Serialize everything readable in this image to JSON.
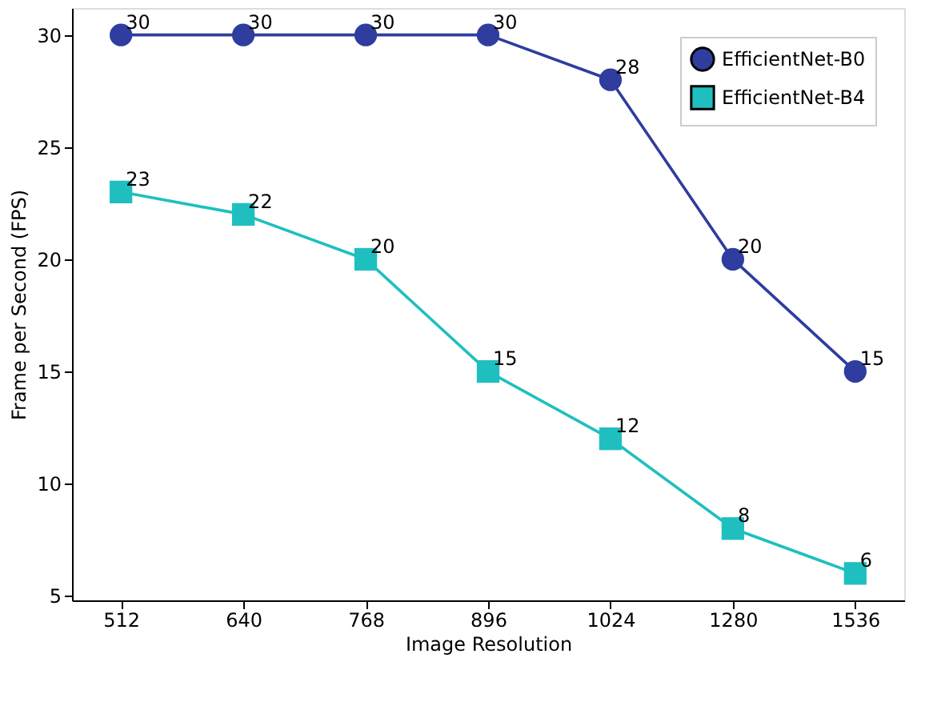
{
  "chart_data": {
    "type": "line",
    "xlabel": "Image Resolution",
    "ylabel": "Frame per Second (FPS)",
    "categories": [
      "512",
      "640",
      "768",
      "896",
      "1024",
      "1280",
      "1536"
    ],
    "series": [
      {
        "name": "EfficientNet-B0",
        "color": "#2e3d9e",
        "marker": "circle",
        "values": [
          30,
          30,
          30,
          30,
          28,
          20,
          15
        ]
      },
      {
        "name": "EfficientNet-B4",
        "color": "#20bfbf",
        "marker": "square",
        "values": [
          23,
          22,
          20,
          15,
          12,
          8,
          6
        ]
      }
    ],
    "ylim": [
      4.8,
      31.2
    ],
    "yticks": [
      5,
      10,
      15,
      20,
      25,
      30
    ],
    "grid": false,
    "legend": "top right",
    "data_labels": true
  }
}
